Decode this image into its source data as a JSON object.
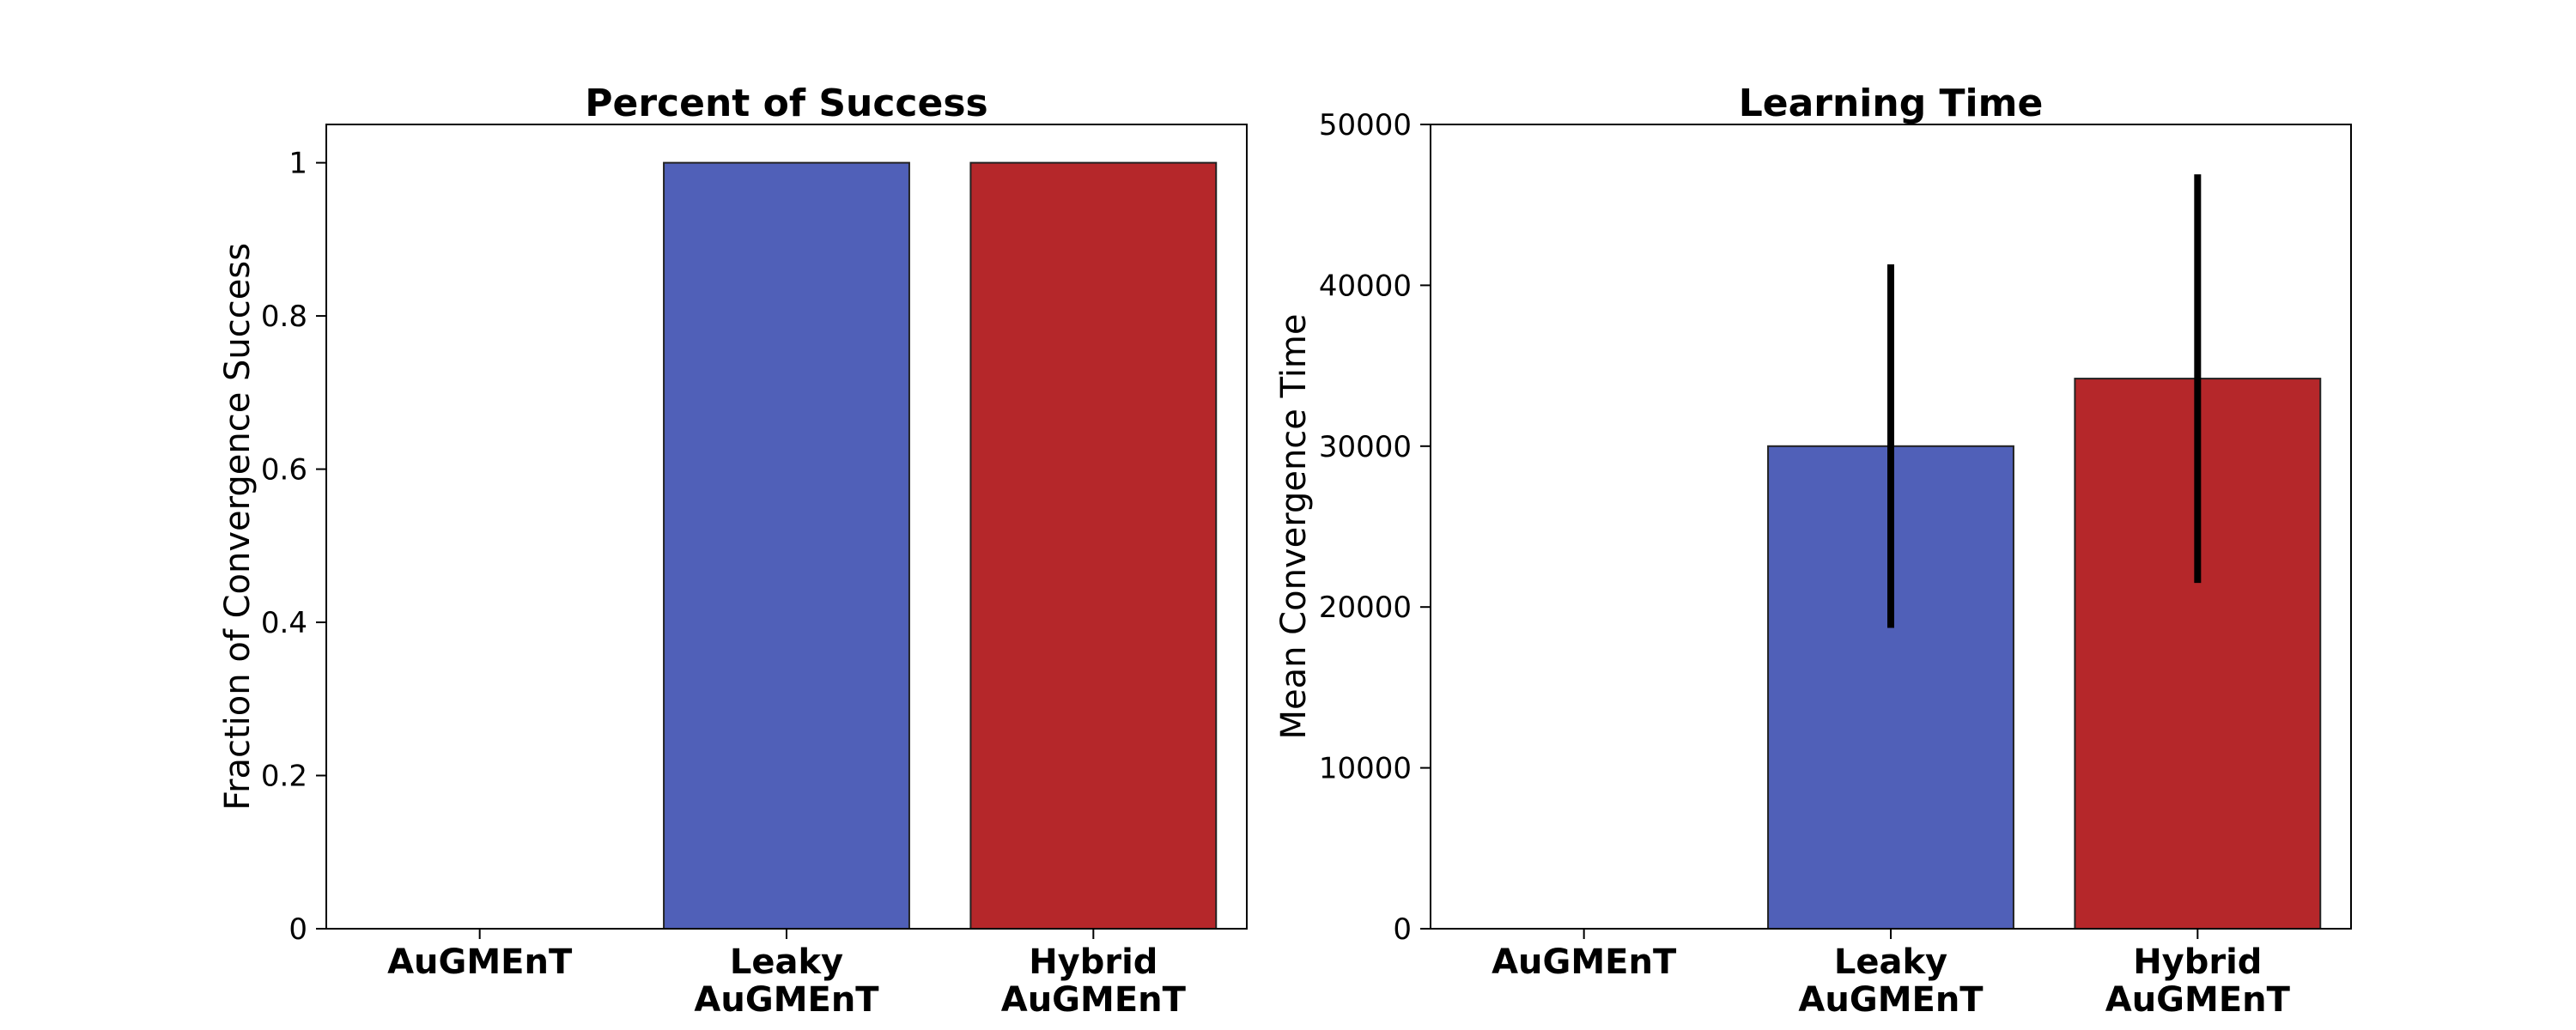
{
  "chart_data": [
    {
      "type": "bar",
      "title": "Percent of Success",
      "xlabel": "",
      "ylabel": "Fraction of Convergence Success",
      "categories": [
        [
          "AuGMEnT"
        ],
        [
          "Leaky",
          "AuGMEnT"
        ],
        [
          "Hybrid",
          "AuGMEnT"
        ]
      ],
      "values": [
        0,
        1,
        1
      ],
      "colors": [
        "#5060b8",
        "#5060b8",
        "#b5272a"
      ],
      "ylim": [
        0,
        1.05
      ],
      "yticks": [
        0,
        0.2,
        0.4,
        0.6,
        0.8,
        1
      ],
      "ytick_labels": [
        "0",
        "0.2",
        "0.4",
        "0.6",
        "0.8",
        "1"
      ],
      "grid": false
    },
    {
      "type": "bar",
      "title": "Learning Time",
      "xlabel": "",
      "ylabel": "Mean Convergence Time",
      "categories": [
        [
          "AuGMEnT"
        ],
        [
          "Leaky",
          "AuGMEnT"
        ],
        [
          "Hybrid",
          "AuGMEnT"
        ]
      ],
      "values": [
        0,
        30000,
        34200
      ],
      "errors": [
        0,
        11300,
        12700
      ],
      "colors": [
        "#5060b8",
        "#5060b8",
        "#b5272a"
      ],
      "ylim": [
        0,
        50000
      ],
      "yticks": [
        0,
        10000,
        20000,
        30000,
        40000,
        50000
      ],
      "ytick_labels": [
        "0",
        "10000",
        "20000",
        "30000",
        "40000",
        "50000"
      ],
      "grid": false
    }
  ]
}
